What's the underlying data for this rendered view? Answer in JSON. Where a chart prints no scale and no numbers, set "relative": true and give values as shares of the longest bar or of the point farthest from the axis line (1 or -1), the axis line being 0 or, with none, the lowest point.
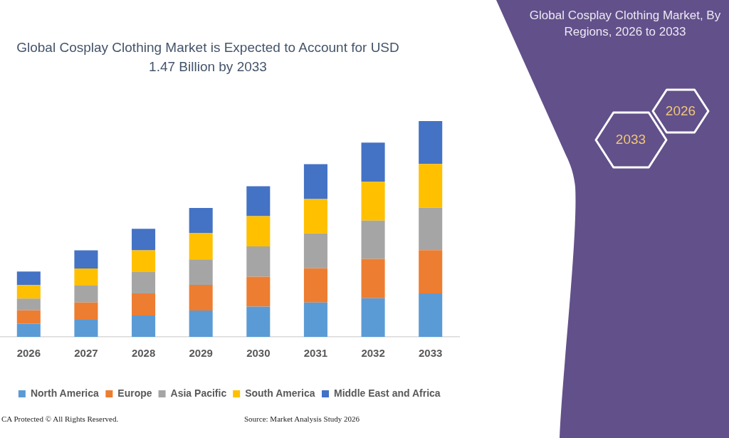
{
  "chart_data": {
    "type": "bar",
    "title": "Global Cosplay Clothing Market is Expected to Account for USD 1.47 Billion by 2033",
    "subtitle": "Global Cosplay Clothing Market, By Regions, 2026 to 2033",
    "categories": [
      "2026",
      "2027",
      "2028",
      "2029",
      "2030",
      "2031",
      "2032",
      "2033"
    ],
    "series": [
      {
        "name": "North America",
        "color": "#5b9bd5",
        "values": [
          0.061,
          0.079,
          0.099,
          0.122,
          0.14,
          0.159,
          0.179,
          0.201
        ]
      },
      {
        "name": "Europe",
        "color": "#ed7d31",
        "values": [
          0.062,
          0.08,
          0.102,
          0.119,
          0.139,
          0.159,
          0.182,
          0.201
        ]
      },
      {
        "name": "Asia Pacific",
        "color": "#a5a5a5",
        "values": [
          0.054,
          0.079,
          0.099,
          0.118,
          0.14,
          0.161,
          0.178,
          0.196
        ]
      },
      {
        "name": "South America",
        "color": "#ffc000",
        "values": [
          0.063,
          0.079,
          0.101,
          0.123,
          0.14,
          0.16,
          0.18,
          0.203
        ]
      },
      {
        "name": "Middle East and Africa",
        "color": "#4472c4",
        "values": [
          0.063,
          0.084,
          0.1,
          0.115,
          0.139,
          0.161,
          0.181,
          0.199
        ]
      }
    ],
    "stacked": true,
    "relative": true,
    "legend": "bottom",
    "annotations": [
      "2026",
      "2033",
      "CA Protected © All Rights Reserved.",
      "Source: Market Analysis Study 2026"
    ]
  }
}
